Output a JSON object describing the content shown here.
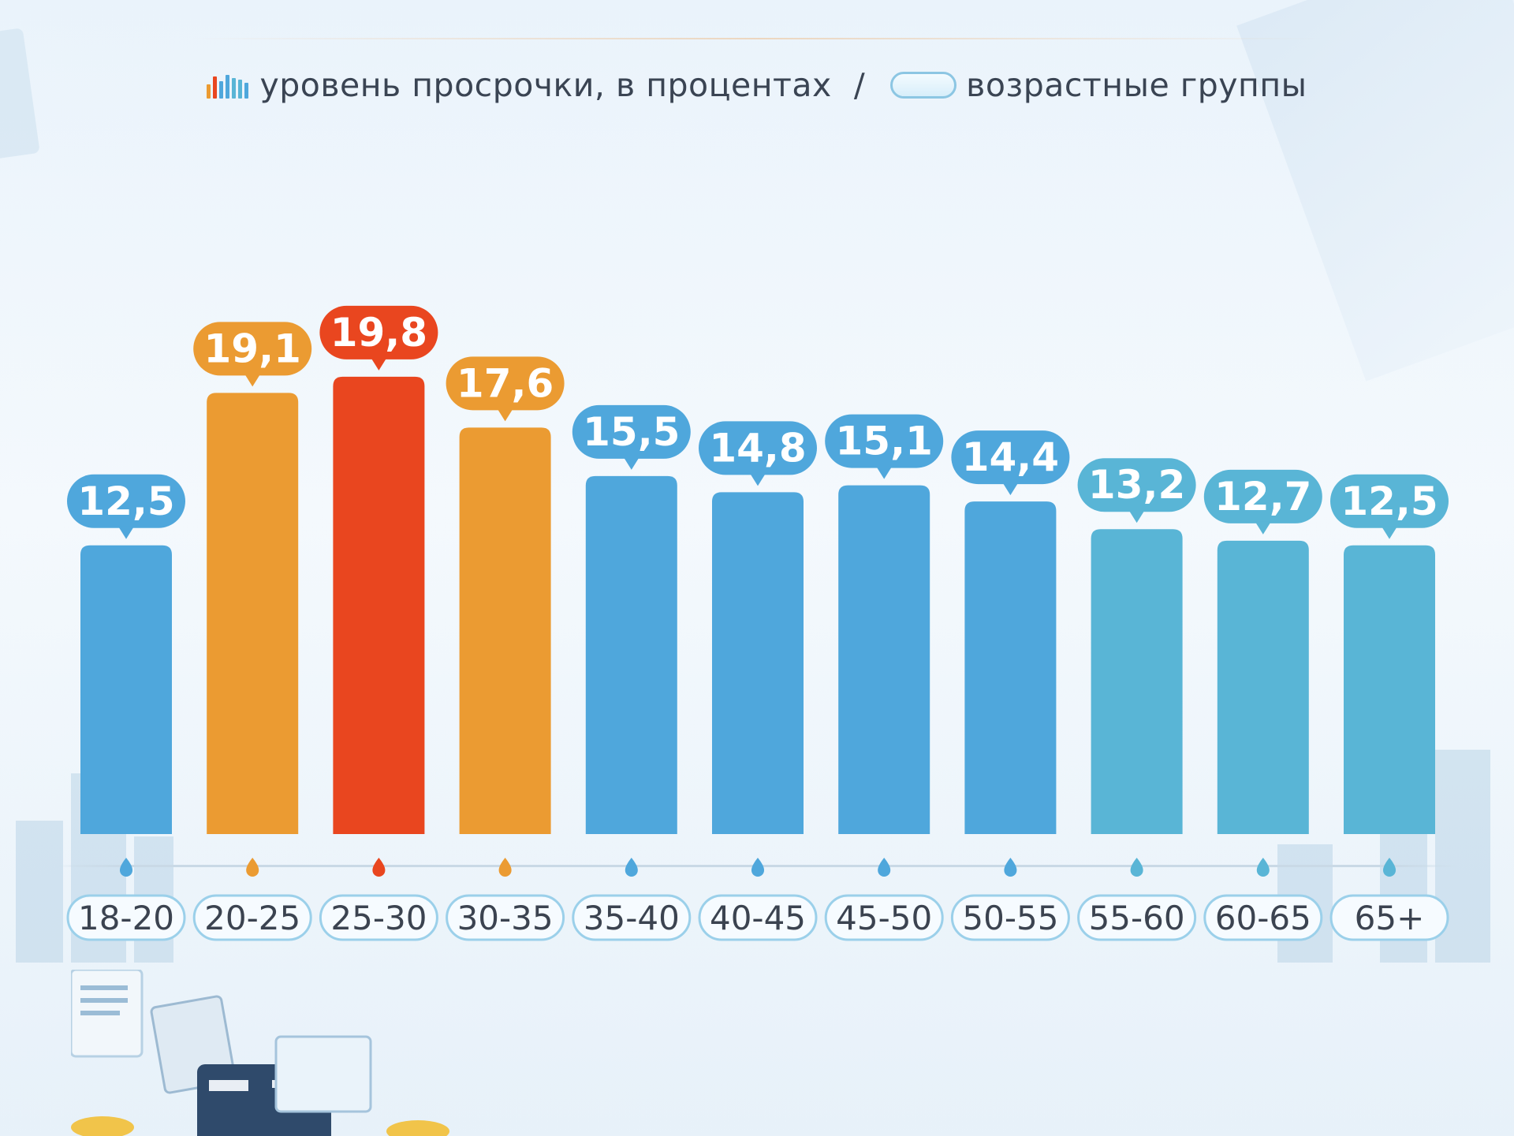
{
  "legend": {
    "value_label": "уровень просрочки, в процентах",
    "separator": "/",
    "group_label": "возрастные группы"
  },
  "colors": {
    "blue": "#4fa7dc",
    "teal": "#59b5d6",
    "orange": "#eb9b32",
    "red": "#e9461f",
    "tick_text": "#3b4350"
  },
  "chart_data": {
    "type": "bar",
    "title": "",
    "xlabel": "возрастные группы",
    "ylabel": "уровень просрочки, в процентах",
    "categories": [
      "18-20",
      "20-25",
      "25-30",
      "30-35",
      "35-40",
      "40-45",
      "45-50",
      "50-55",
      "55-60",
      "60-65",
      "65+"
    ],
    "values": [
      12.5,
      19.1,
      19.8,
      17.6,
      15.5,
      14.8,
      15.1,
      14.4,
      13.2,
      12.7,
      12.5
    ],
    "value_labels": [
      "12,5",
      "19,1",
      "19,8",
      "17,6",
      "15,5",
      "14,8",
      "15,1",
      "14,4",
      "13,2",
      "12,7",
      "12,5"
    ],
    "bar_colors": [
      "blue",
      "orange",
      "red",
      "orange",
      "blue",
      "blue",
      "blue",
      "blue",
      "teal",
      "teal",
      "teal"
    ],
    "grid": false,
    "legend_position": "top"
  }
}
